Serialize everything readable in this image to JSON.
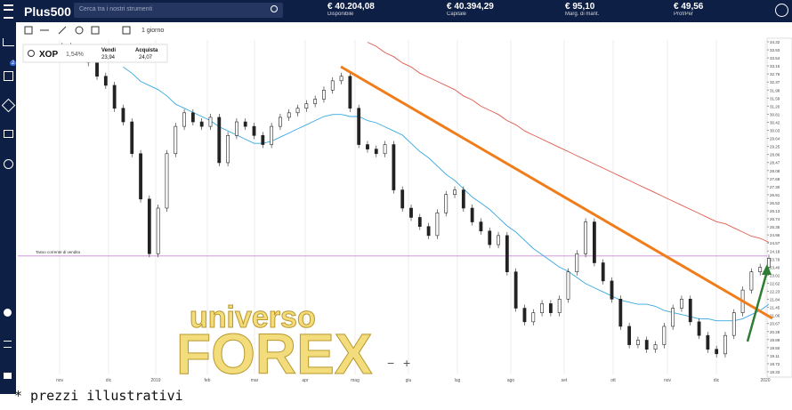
{
  "header": {
    "logo": "Plus500",
    "search_placeholder": "Cerca tra i nostri strumenti",
    "stats": [
      {
        "value": "€ 40.204,08",
        "label": "Disponibile"
      },
      {
        "value": "€ 40.394,29",
        "label": "Capitale"
      },
      {
        "value": "€ 95,10",
        "label": "Marg. di mant."
      },
      {
        "value": "€ 49,56",
        "label": "Prof/Per"
      }
    ]
  },
  "sidebar": {
    "badge": "2"
  },
  "toolbar": {
    "interval": "1 giorno"
  },
  "instrument": {
    "symbol": "XOP",
    "change": "1,54%",
    "sell_label": "Vendi",
    "sell": "23,94",
    "buy_label": "Acquista",
    "buy": "24,07"
  },
  "chart_data": {
    "type": "candlestick",
    "current_rate": {
      "label": "Tasso corrente di vendita",
      "value": 23.94
    },
    "ylim": [
      18.33,
      34.32
    ],
    "yticks": [
      34.32,
      33.93,
      33.54,
      33.15,
      32.76,
      32.37,
      31.98,
      31.59,
      {
        "value": 31.2,
        "label": "31.20"
      },
      30.81,
      30.42,
      30.03,
      29.64,
      29.25,
      28.86,
      28.47,
      28.08,
      27.69,
      {
        "value": 27.3,
        "label": "27.30"
      },
      26.91,
      26.52,
      26.13,
      25.74,
      25.35,
      24.96,
      24.57,
      24.18,
      23.79,
      {
        "value": 23.4,
        "label": "23.40"
      },
      23.01,
      22.62,
      22.23,
      21.84,
      21.45,
      21.06,
      20.67,
      20.28,
      19.89,
      {
        "value": 19.5,
        "label": "19.50"
      },
      19.11,
      18.72,
      18.33
    ],
    "xlabels": [
      "nov",
      "dic",
      "2019",
      "feb",
      "mar",
      "apr",
      "mag",
      "giu",
      "lug",
      "ago",
      "set",
      "ott",
      "nov",
      "dic",
      "2020"
    ],
    "closes": [
      33.9,
      34.1,
      33.7,
      33.5,
      33.31,
      32.65,
      32.21,
      31.1,
      30.44,
      28.9,
      26.7,
      24.05,
      26.26,
      28.9,
      30.22,
      30.88,
      30.44,
      30.22,
      30.66,
      28.46,
      29.78,
      30.44,
      30.22,
      29.78,
      29.34,
      30.22,
      30.66,
      30.88,
      31.1,
      31.32,
      31.54,
      31.98,
      32.43,
      32.65,
      31.1,
      29.34,
      29.12,
      28.9,
      29.34,
      27.14,
      26.26,
      25.81,
      25.37,
      24.93,
      26.03,
      26.92,
      27.14,
      26.26,
      25.59,
      25.15,
      24.49,
      24.93,
      23.17,
      21.41,
      20.75,
      21.19,
      21.63,
      21.19,
      21.85,
      23.17,
      24.05,
      25.59,
      23.61,
      22.73,
      21.85,
      20.53,
      19.64,
      19.86,
      19.42,
      19.64,
      20.53,
      21.41,
      21.85,
      20.75,
      20.09,
      19.42,
      19.2,
      20.09,
      21.19,
      22.29,
      23.17,
      23.39,
      23.83
    ],
    "series": [
      {
        "color": "#37a8e0",
        "values": [
          null,
          null,
          null,
          null,
          null,
          null,
          null,
          null,
          33.1,
          32.8,
          32.4,
          32.2,
          32.0,
          31.7,
          31.3,
          31.1,
          30.9,
          30.7,
          30.5,
          30.2,
          30.0,
          29.8,
          29.6,
          29.4,
          29.4,
          29.5,
          29.7,
          29.9,
          30.1,
          30.3,
          30.5,
          30.7,
          30.8,
          30.8,
          30.7,
          30.7,
          30.5,
          30.4,
          30.2,
          30.0,
          29.8,
          29.4,
          29.0,
          28.7,
          28.3,
          27.9,
          27.6,
          27.2,
          26.8,
          26.5,
          26.2,
          25.8,
          25.4,
          25.1,
          24.7,
          24.3,
          24.0,
          23.7,
          23.4,
          23.2,
          22.9,
          22.6,
          22.4,
          22.2,
          22.0,
          21.8,
          21.7,
          21.6,
          21.6,
          21.5,
          21.3,
          21.2,
          21.1,
          21.0,
          20.9,
          20.9,
          20.8,
          20.8,
          20.8,
          20.9,
          21.1,
          21.3,
          21.6
        ]
      },
      {
        "color": "#e05a4e",
        "values": [
          null,
          null,
          null,
          null,
          null,
          null,
          null,
          null,
          null,
          null,
          null,
          null,
          null,
          null,
          null,
          null,
          null,
          null,
          null,
          null,
          null,
          null,
          null,
          null,
          null,
          null,
          null,
          null,
          null,
          null,
          null,
          null,
          null,
          null,
          null,
          null,
          34.3,
          34.1,
          33.8,
          33.6,
          33.3,
          33.1,
          32.8,
          32.6,
          32.4,
          32.2,
          32.0,
          31.7,
          31.5,
          31.2,
          31.0,
          30.8,
          30.5,
          30.3,
          30.0,
          29.8,
          29.6,
          29.4,
          29.2,
          29.0,
          28.8,
          28.6,
          28.4,
          28.2,
          28.0,
          27.8,
          27.6,
          27.4,
          27.2,
          27.0,
          26.8,
          26.6,
          26.4,
          26.2,
          26.0,
          25.8,
          25.6,
          25.5,
          25.3,
          25.1,
          24.9,
          24.8,
          24.6
        ]
      }
    ]
  },
  "watermark": {
    "line1": "universo",
    "line2": "FOREX"
  },
  "footer": "* prezzi illustrativi"
}
